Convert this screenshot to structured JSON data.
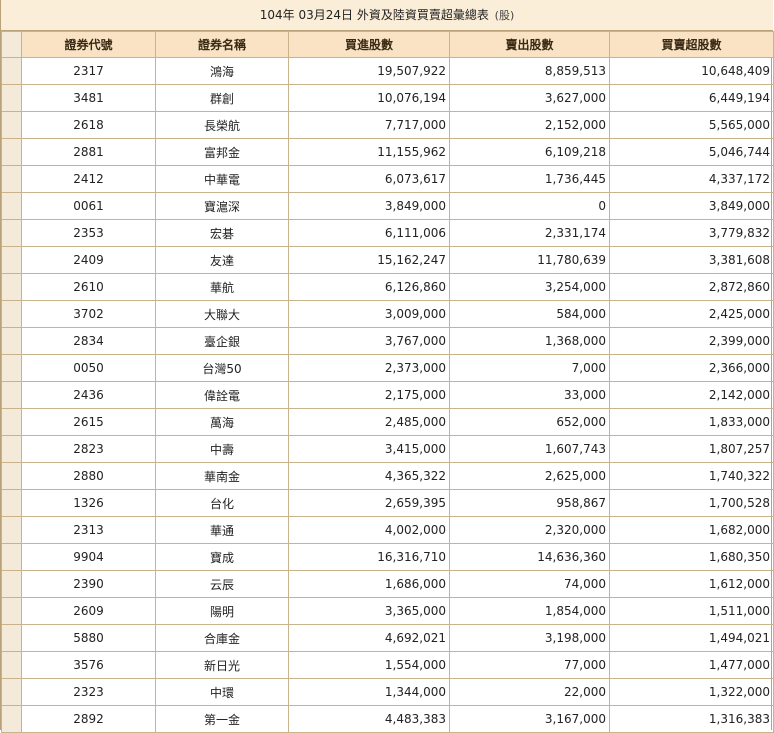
{
  "title": {
    "text": "104年 03月24日 外資及陸資買賣超彙總表",
    "unit": "(股)"
  },
  "headers": [
    "證券代號",
    "證券名稱",
    "買進股數",
    "賣出股數",
    "買賣超股數"
  ],
  "rows": [
    [
      "2317",
      "鴻海",
      "19,507,922",
      "8,859,513",
      "10,648,409"
    ],
    [
      "3481",
      "群創",
      "10,076,194",
      "3,627,000",
      "6,449,194"
    ],
    [
      "2618",
      "長榮航",
      "7,717,000",
      "2,152,000",
      "5,565,000"
    ],
    [
      "2881",
      "富邦金",
      "11,155,962",
      "6,109,218",
      "5,046,744"
    ],
    [
      "2412",
      "中華電",
      "6,073,617",
      "1,736,445",
      "4,337,172"
    ],
    [
      "0061",
      "寶滬深",
      "3,849,000",
      "0",
      "3,849,000"
    ],
    [
      "2353",
      "宏碁",
      "6,111,006",
      "2,331,174",
      "3,779,832"
    ],
    [
      "2409",
      "友達",
      "15,162,247",
      "11,780,639",
      "3,381,608"
    ],
    [
      "2610",
      "華航",
      "6,126,860",
      "3,254,000",
      "2,872,860"
    ],
    [
      "3702",
      "大聯大",
      "3,009,000",
      "584,000",
      "2,425,000"
    ],
    [
      "2834",
      "臺企銀",
      "3,767,000",
      "1,368,000",
      "2,399,000"
    ],
    [
      "0050",
      "台灣50",
      "2,373,000",
      "7,000",
      "2,366,000"
    ],
    [
      "2436",
      "偉詮電",
      "2,175,000",
      "33,000",
      "2,142,000"
    ],
    [
      "2615",
      "萬海",
      "2,485,000",
      "652,000",
      "1,833,000"
    ],
    [
      "2823",
      "中壽",
      "3,415,000",
      "1,607,743",
      "1,807,257"
    ],
    [
      "2880",
      "華南金",
      "4,365,322",
      "2,625,000",
      "1,740,322"
    ],
    [
      "1326",
      "台化",
      "2,659,395",
      "958,867",
      "1,700,528"
    ],
    [
      "2313",
      "華通",
      "4,002,000",
      "2,320,000",
      "1,682,000"
    ],
    [
      "9904",
      "寶成",
      "16,316,710",
      "14,636,360",
      "1,680,350"
    ],
    [
      "2390",
      "云辰",
      "1,686,000",
      "74,000",
      "1,612,000"
    ],
    [
      "2609",
      "陽明",
      "3,365,000",
      "1,854,000",
      "1,511,000"
    ],
    [
      "5880",
      "合庫金",
      "4,692,021",
      "3,198,000",
      "1,494,021"
    ],
    [
      "3576",
      "新日光",
      "1,554,000",
      "77,000",
      "1,477,000"
    ],
    [
      "2323",
      "中環",
      "1,344,000",
      "22,000",
      "1,322,000"
    ],
    [
      "2892",
      "第一金",
      "4,483,383",
      "3,167,000",
      "1,316,383"
    ]
  ]
}
